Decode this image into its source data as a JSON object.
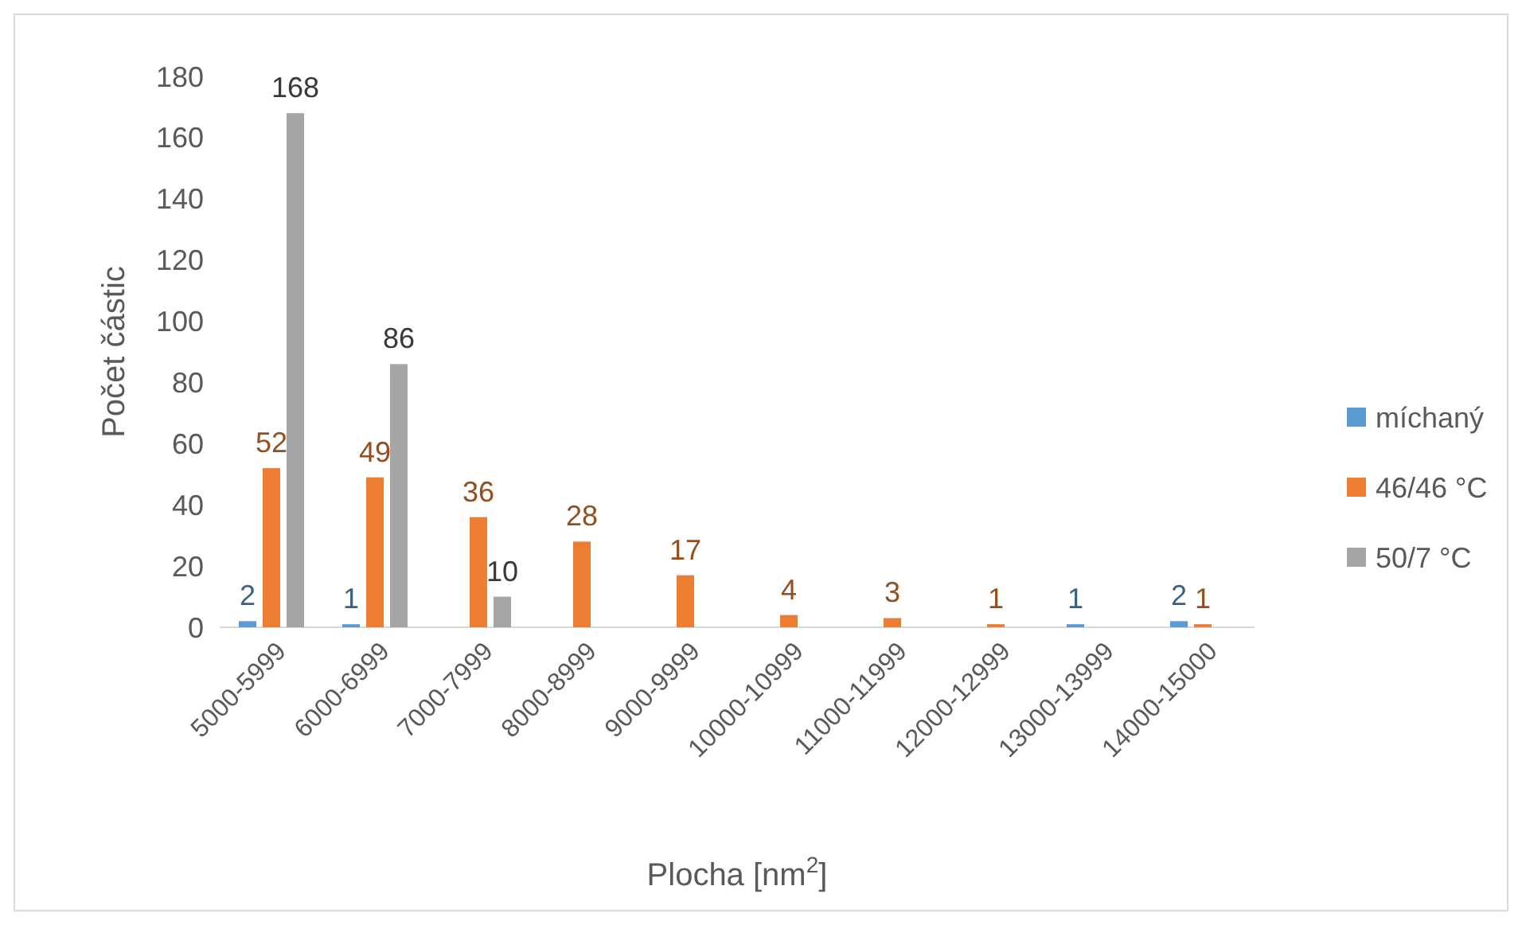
{
  "chart_data": {
    "type": "bar",
    "xlabel": "Plocha [nm$^{2}$]",
    "ylabel": "Počet částic",
    "categories": [
      "5000-5999",
      "6000-6999",
      "7000-7999",
      "8000-8999",
      "9000-9999",
      "10000-10999",
      "11000-11999",
      "12000-12999",
      "13000-13999",
      "14000-15000"
    ],
    "series": [
      {
        "name": "míchaný",
        "color": "#5b9bd5",
        "values": [
          2,
          1,
          null,
          null,
          null,
          null,
          null,
          null,
          1,
          2
        ],
        "value_labels": [
          "2",
          "1",
          null,
          null,
          null,
          null,
          null,
          null,
          "1",
          "2"
        ]
      },
      {
        "name": "46/46 °C",
        "color": "#ed7d31",
        "values": [
          52,
          49,
          36,
          28,
          17,
          4,
          3,
          1,
          null,
          1
        ],
        "value_labels": [
          "52",
          "49",
          "36",
          "28",
          "17",
          "4",
          "3",
          "1",
          null,
          "1"
        ]
      },
      {
        "name": "50/7 °C",
        "color": "#a5a5a5",
        "values": [
          168,
          86,
          10,
          null,
          null,
          null,
          null,
          null,
          null,
          null
        ],
        "value_labels": [
          "168",
          "86",
          "10",
          null,
          null,
          null,
          null,
          null,
          null,
          null
        ]
      }
    ],
    "ylim": [
      0,
      180
    ],
    "yticks": [
      0,
      20,
      40,
      60,
      80,
      100,
      120,
      140,
      160,
      180
    ],
    "grid": false,
    "legend": "right"
  }
}
